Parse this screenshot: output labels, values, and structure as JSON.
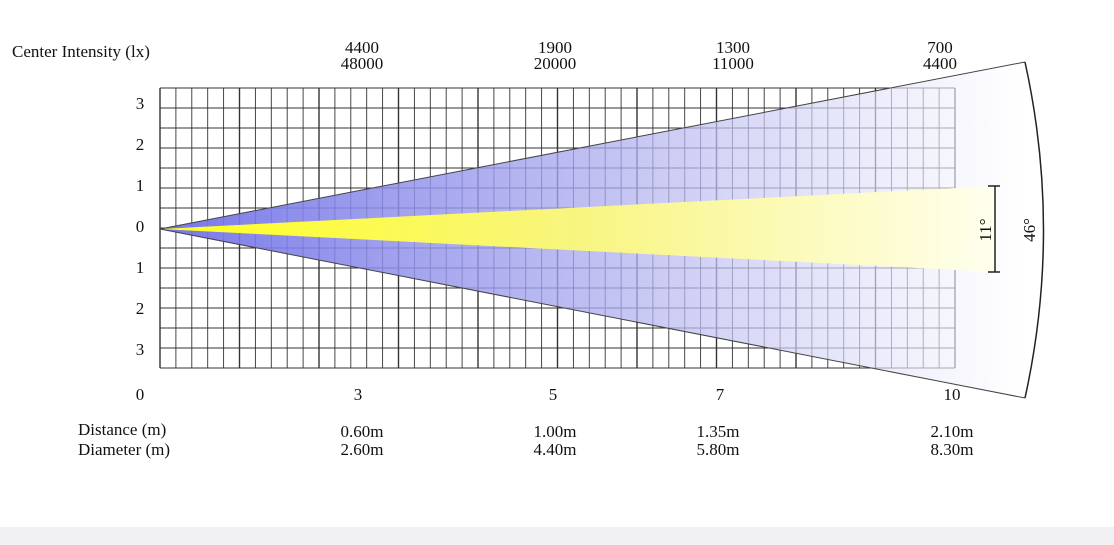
{
  "header": {
    "title": "Center Intensity (lx)"
  },
  "intensities": [
    {
      "low": "4400",
      "high": "48000"
    },
    {
      "low": "1900",
      "high": "20000"
    },
    {
      "low": "1300",
      "high": "11000"
    },
    {
      "low": "700",
      "high": "4400"
    }
  ],
  "row_labels": [
    "3",
    "2",
    "1",
    "0",
    "1",
    "2",
    "3"
  ],
  "distance_marks": [
    "0",
    "3",
    "5",
    "7",
    "10"
  ],
  "footer": {
    "distance_label": "Distance (m)",
    "diameter_label": "Diameter (m)",
    "distances": [
      "0.60m",
      "1.00m",
      "1.35m",
      "2.10m"
    ],
    "diameters": [
      "2.60m",
      "4.40m",
      "5.80m",
      "8.30m"
    ]
  },
  "angles": {
    "beam": "11°",
    "field": "46°"
  }
}
